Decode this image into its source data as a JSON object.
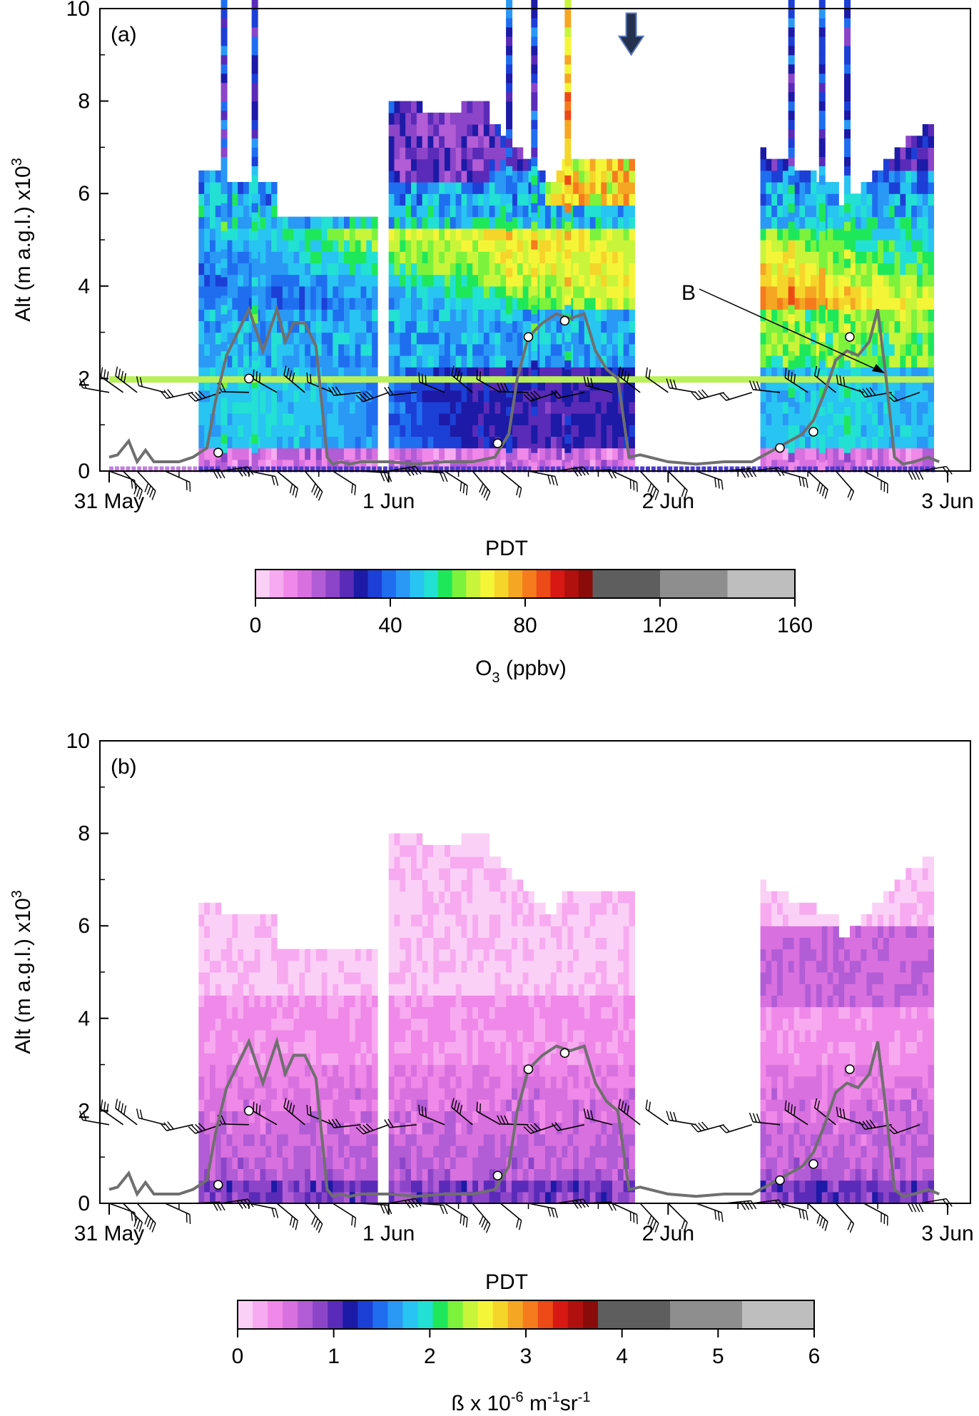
{
  "chart_data": [
    {
      "type": "heatmap",
      "panel_label": "(a)",
      "ylabel": "Alt (m a.g.l.) x10",
      "ylabel_exponent": "3",
      "xlabel": "PDT",
      "ylim": [
        0,
        10
      ],
      "y_ticks": [
        "0",
        "2",
        "4",
        "6",
        "8",
        "10"
      ],
      "x_ticks": [
        "31 May",
        "1 Jun",
        "2 Jun",
        "3 Jun"
      ],
      "annotation": "B",
      "colorbar": {
        "title_main": "O",
        "title_sub": "3",
        "title_rest": " (ppbv)",
        "ticks": [
          "0",
          "40",
          "80",
          "120",
          "160"
        ],
        "range": [
          0,
          160
        ]
      },
      "lidar_coverage_days": [
        [
          0.32,
          0.95
        ],
        [
          1.0,
          1.88
        ],
        [
          2.33,
          2.95
        ]
      ],
      "boundary_layer_height_km": {
        "x": [
          0.0,
          0.03,
          0.07,
          0.1,
          0.13,
          0.16,
          0.2,
          0.25,
          0.3,
          0.35,
          0.38,
          0.42,
          0.46,
          0.5,
          0.55,
          0.6,
          0.63,
          0.66,
          0.7,
          0.74,
          0.78,
          0.8,
          0.83,
          0.86,
          0.9,
          1.0,
          1.1,
          1.2,
          1.3,
          1.38,
          1.43,
          1.46,
          1.5,
          1.55,
          1.6,
          1.65,
          1.7,
          1.74,
          1.78,
          1.82,
          1.86,
          1.9,
          2.0,
          2.1,
          2.2,
          2.3,
          2.36,
          2.42,
          2.48,
          2.52,
          2.56,
          2.6,
          2.64,
          2.68,
          2.72,
          2.75,
          2.78,
          2.81,
          2.84,
          2.88,
          2.93,
          2.97
        ],
        "y": [
          0.3,
          0.35,
          0.65,
          0.2,
          0.45,
          0.2,
          0.2,
          0.2,
          0.3,
          0.5,
          1.5,
          2.5,
          3.0,
          3.5,
          2.6,
          3.5,
          2.8,
          3.2,
          3.2,
          2.7,
          0.3,
          0.15,
          0.2,
          0.15,
          0.2,
          0.2,
          0.15,
          0.2,
          0.2,
          0.3,
          0.8,
          2.0,
          2.9,
          3.2,
          3.4,
          3.3,
          3.4,
          2.6,
          2.2,
          2.0,
          0.3,
          0.35,
          0.2,
          0.15,
          0.2,
          0.2,
          0.4,
          0.6,
          0.8,
          1.1,
          1.7,
          2.4,
          2.6,
          2.5,
          2.8,
          3.5,
          2.0,
          0.3,
          0.15,
          0.2,
          0.3,
          0.2
        ]
      },
      "sonde_points": {
        "x": [
          0.39,
          0.5,
          1.39,
          1.5,
          1.63,
          2.4,
          2.52,
          2.65
        ],
        "y": [
          0.4,
          2.0,
          0.6,
          2.9,
          3.25,
          0.5,
          0.85,
          2.9
        ]
      },
      "ozonesonde_columns_days": [
        0.41,
        0.52,
        1.43,
        1.52,
        1.64,
        2.44,
        2.55,
        2.64
      ],
      "wind_barbs_days": [
        0.0,
        0.05,
        0.1,
        0.2,
        0.3,
        0.4,
        0.5,
        0.6,
        0.7,
        0.8,
        0.9,
        1.0,
        1.1,
        1.2,
        1.3,
        1.4,
        1.5,
        1.6,
        1.7,
        1.8,
        1.9,
        2.0,
        2.1,
        2.2,
        2.3,
        2.4,
        2.5,
        2.6,
        2.7,
        2.8,
        2.9
      ]
    },
    {
      "type": "heatmap",
      "panel_label": "(b)",
      "ylabel": "Alt (m a.g.l.) x10",
      "ylabel_exponent": "3",
      "xlabel": "PDT",
      "ylim": [
        0,
        10
      ],
      "y_ticks": [
        "0",
        "2",
        "4",
        "6",
        "8",
        "10"
      ],
      "x_ticks": [
        "31 May",
        "1 Jun",
        "2 Jun",
        "3 Jun"
      ],
      "colorbar": {
        "title_main": "ß x 10",
        "title_exp1": "-6",
        "title_unit1": " m",
        "title_exp2": "-1",
        "title_unit2": "sr",
        "title_exp3": "-1",
        "ticks": [
          "0",
          "1",
          "2",
          "3",
          "4",
          "5",
          "6"
        ],
        "range": [
          0,
          6
        ]
      },
      "lidar_coverage_days": [
        [
          0.32,
          0.95
        ],
        [
          1.0,
          1.88
        ],
        [
          2.33,
          2.95
        ]
      ]
    }
  ],
  "colors": {
    "o3_scale": [
      "#fbd0f6",
      "#f7aaf0",
      "#ef88e8",
      "#d970df",
      "#b25cd6",
      "#8c45c9",
      "#5a2bb8",
      "#1c1aa6",
      "#1c3fd6",
      "#1f6ef0",
      "#2a98f5",
      "#28c4f2",
      "#22e0d4",
      "#1ee85a",
      "#7cf23c",
      "#c8f53a",
      "#f5f538",
      "#f5d52a",
      "#f5a623",
      "#f57b1d",
      "#ec4a16",
      "#d81812",
      "#b0100e",
      "#8a0c0a",
      "#5e5e5e",
      "#8e8e8e",
      "#bebebe"
    ],
    "bl_line": "#6f6f6f"
  }
}
